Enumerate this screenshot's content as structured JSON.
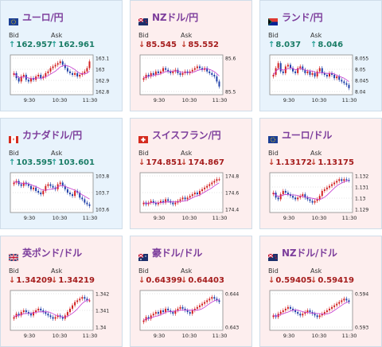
{
  "cards": [
    {
      "pair": "ユーロ/円",
      "flag": "eu",
      "trend": "up",
      "bid_label": "Bid",
      "ask_label": "Ask",
      "bid": "162.957",
      "ask": "162.961",
      "yticks": [
        "163.1",
        "163",
        "162.9",
        "162.8"
      ],
      "xticks": [
        "9:30",
        "10:30",
        "11:30"
      ]
    },
    {
      "pair": "NZドル/円",
      "flag": "nz",
      "trend": "down",
      "bid_label": "Bid",
      "ask_label": "Ask",
      "bid": "85.545",
      "ask": "85.552",
      "yticks": [
        "85.6",
        "85.5"
      ],
      "xticks": [
        "9:30",
        "10:30",
        "11:30"
      ]
    },
    {
      "pair": "ランド/円",
      "flag": "za",
      "trend": "up",
      "bid_label": "Bid",
      "ask_label": "Ask",
      "bid": "8.037",
      "ask": "8.046",
      "yticks": [
        "8.055",
        "8.05",
        "8.045",
        "8.04"
      ],
      "xticks": [
        "9:30",
        "10:30",
        "11:30"
      ]
    },
    {
      "pair": "カナダドル/円",
      "flag": "ca",
      "trend": "up",
      "bid_label": "Bid",
      "ask_label": "Ask",
      "bid": "103.595",
      "ask": "103.601",
      "yticks": [
        "103.8",
        "103.7",
        "103.6"
      ],
      "xticks": [
        "9:30",
        "10:30",
        "11:30"
      ]
    },
    {
      "pair": "スイスフラン/円",
      "flag": "ch",
      "trend": "down",
      "bid_label": "Bid",
      "ask_label": "Ask",
      "bid": "174.851",
      "ask": "174.867",
      "yticks": [
        "174.8",
        "174.6",
        "174.4"
      ],
      "xticks": [
        "9:30",
        "10:30",
        "11:30"
      ]
    },
    {
      "pair": "ユーロ/ドル",
      "flag": "eu",
      "trend": "down",
      "bid_label": "Bid",
      "ask_label": "Ask",
      "bid": "1.13172",
      "ask": "1.13175",
      "yticks": [
        "1.132",
        "1.131",
        "1.13",
        "1.129"
      ],
      "xticks": [
        "9:30",
        "10:30",
        "11:30"
      ]
    },
    {
      "pair": "英ポンド/ドル",
      "flag": "gb",
      "trend": "down",
      "bid_label": "Bid",
      "ask_label": "Ask",
      "bid": "1.34209",
      "ask": "1.34219",
      "yticks": [
        "1.342",
        "1.341",
        "1.34"
      ],
      "xticks": [
        "9:30",
        "10:30",
        "11:30"
      ]
    },
    {
      "pair": "豪ドル/ドル",
      "flag": "au",
      "trend": "down",
      "bid_label": "Bid",
      "ask_label": "Ask",
      "bid": "0.64399",
      "ask": "0.64403",
      "yticks": [
        "0.644",
        "0.643"
      ],
      "xticks": [
        "9:30",
        "10:30",
        "11:30"
      ]
    },
    {
      "pair": "NZドル/ドル",
      "flag": "nz",
      "trend": "down",
      "bid_label": "Bid",
      "ask_label": "Ask",
      "bid": "0.59405",
      "ask": "0.59419",
      "yticks": [
        "0.594",
        "0.593"
      ],
      "xticks": [
        "9:30",
        "10:30",
        "11:30"
      ]
    }
  ],
  "colors": {
    "up_candle": "#d11f1f",
    "down_candle": "#1f3fa8",
    "ma_line": "#c63ad0",
    "card_up_bg": "#e8f3fc",
    "card_down_bg": "#fdeeee",
    "pair_text": "#7d3e9c"
  }
}
